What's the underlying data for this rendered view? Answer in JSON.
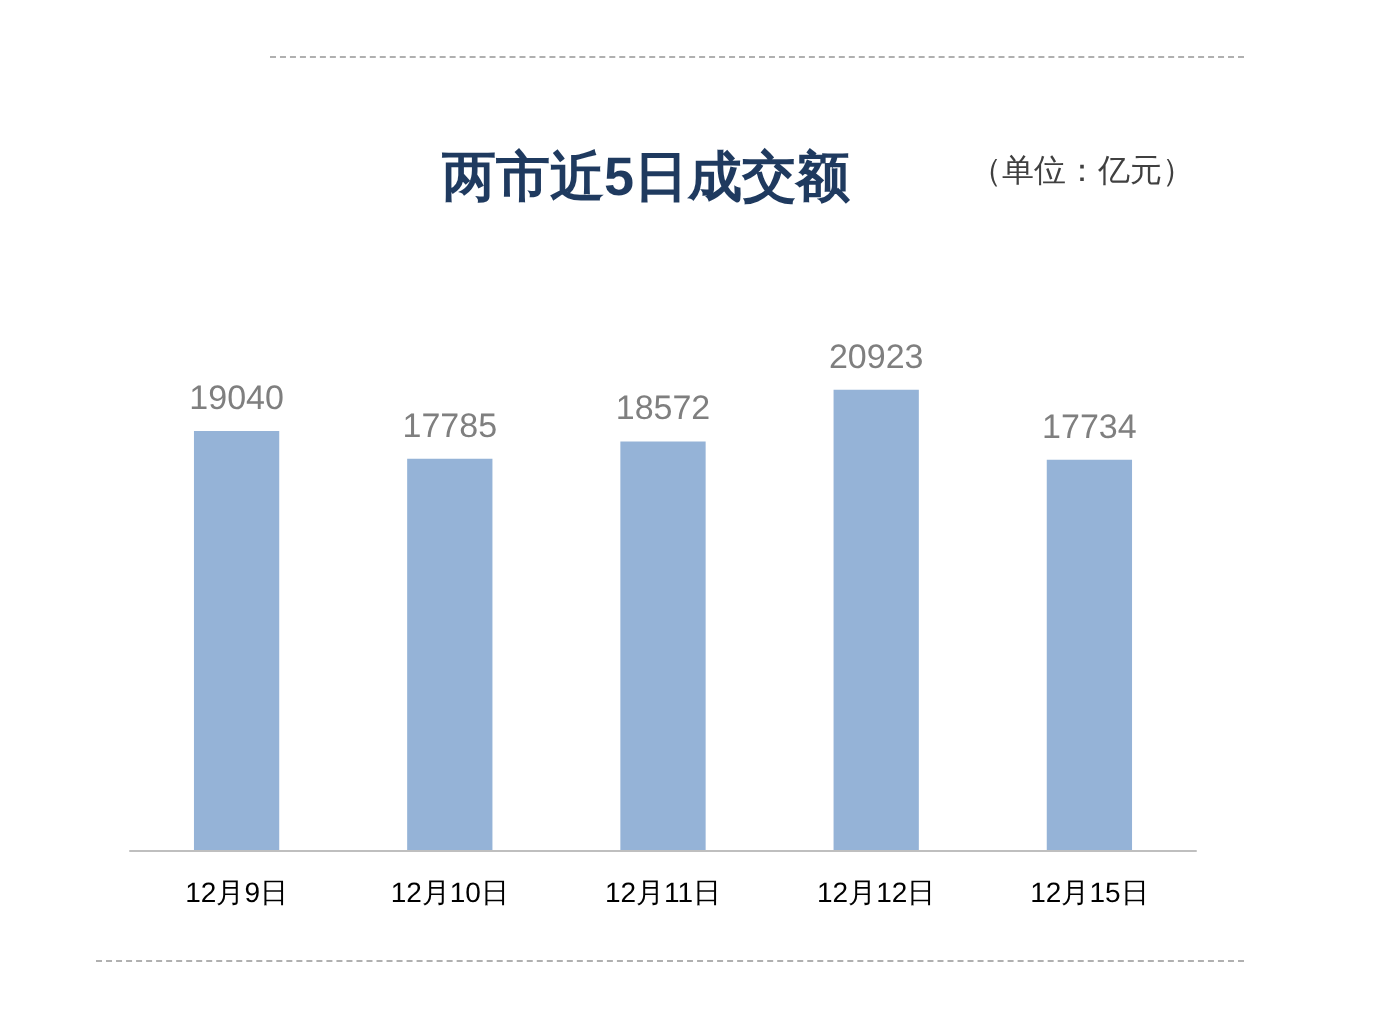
{
  "chart_data": {
    "type": "bar",
    "title": "两市近5日成交额",
    "subtitle": "（单位：亿元）",
    "categories": [
      "12月9日",
      "12月10日",
      "12月11日",
      "12月12日",
      "12月15日"
    ],
    "values": [
      19040,
      17785,
      18572,
      20923,
      17734
    ],
    "color": "#95b3d7",
    "data_labels": true
  }
}
